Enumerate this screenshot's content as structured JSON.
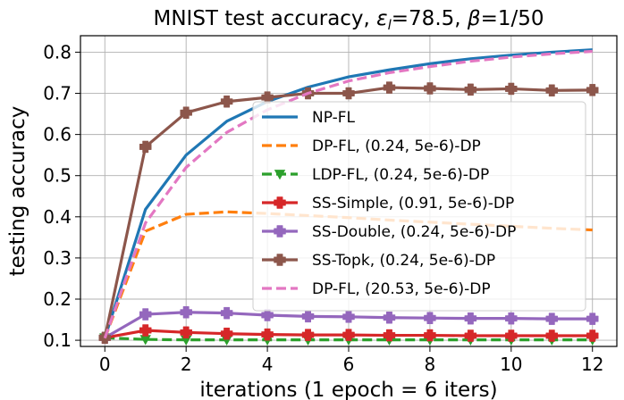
{
  "chart_data": {
    "type": "line",
    "title_parts": {
      "prefix": "MNIST test accuracy, ",
      "eps_symbol": "ε",
      "eps_sub": "l",
      "middle": "=78.5, ",
      "beta_symbol": "β",
      "suffix": "=1/50"
    },
    "xlabel": "iterations (1 epoch = 6 iters)",
    "ylabel": "testing accuracy",
    "xlim": [
      -0.6,
      12.6
    ],
    "ylim": [
      0.085,
      0.84
    ],
    "xticks": [
      0,
      2,
      4,
      6,
      8,
      10,
      12
    ],
    "yticks": [
      0.1,
      0.2,
      0.3,
      0.4,
      0.5,
      0.6,
      0.7,
      0.8
    ],
    "grid": true,
    "legend_position": "center-right",
    "x": [
      0,
      1,
      2,
      3,
      4,
      5,
      6,
      7,
      8,
      9,
      10,
      11,
      12
    ],
    "series": [
      {
        "name": "NP-FL",
        "color": "#1f77b4",
        "style": "solid",
        "marker": "none",
        "values": [
          0.105,
          0.418,
          0.55,
          0.632,
          0.68,
          0.715,
          0.74,
          0.757,
          0.772,
          0.784,
          0.793,
          0.8,
          0.806
        ]
      },
      {
        "name": "DP-FL, (0.24, 5e-6)-DP",
        "color": "#ff7f0e",
        "style": "dashed",
        "marker": "none",
        "values": [
          0.105,
          0.365,
          0.406,
          0.412,
          0.408,
          0.403,
          0.398,
          0.392,
          0.387,
          0.382,
          0.377,
          0.372,
          0.368
        ]
      },
      {
        "name": "LDP-FL, (0.24, 5e-6)-DP",
        "color": "#2ca02c",
        "style": "dashed",
        "marker": "triangle-down",
        "values": [
          0.106,
          0.102,
          0.101,
          0.101,
          0.101,
          0.101,
          0.101,
          0.101,
          0.101,
          0.101,
          0.101,
          0.101,
          0.101
        ]
      },
      {
        "name": "SS-Simple, (0.91, 5e-6)-DP",
        "color": "#d62728",
        "style": "solid",
        "marker": "plus",
        "values": [
          0.106,
          0.124,
          0.119,
          0.116,
          0.114,
          0.113,
          0.113,
          0.112,
          0.112,
          0.111,
          0.111,
          0.111,
          0.111
        ]
      },
      {
        "name": "SS-Double, (0.24, 5e-6)-DP",
        "color": "#9467bd",
        "style": "solid",
        "marker": "plus",
        "values": [
          0.106,
          0.163,
          0.168,
          0.166,
          0.161,
          0.158,
          0.157,
          0.155,
          0.154,
          0.153,
          0.153,
          0.152,
          0.152
        ]
      },
      {
        "name": "SS-Topk, (0.24, 5e-6)-DP",
        "color": "#8c564b",
        "style": "solid",
        "marker": "plus",
        "values": [
          0.106,
          0.57,
          0.653,
          0.68,
          0.69,
          0.7,
          0.7,
          0.714,
          0.712,
          0.709,
          0.711,
          0.707,
          0.708
        ]
      },
      {
        "name": "DP-FL, (20.53, 5e-6)-DP",
        "color": "#e377c2",
        "style": "dashed",
        "marker": "none",
        "values": [
          0.105,
          0.385,
          0.52,
          0.605,
          0.66,
          0.7,
          0.73,
          0.75,
          0.765,
          0.778,
          0.788,
          0.796,
          0.802
        ]
      }
    ]
  }
}
